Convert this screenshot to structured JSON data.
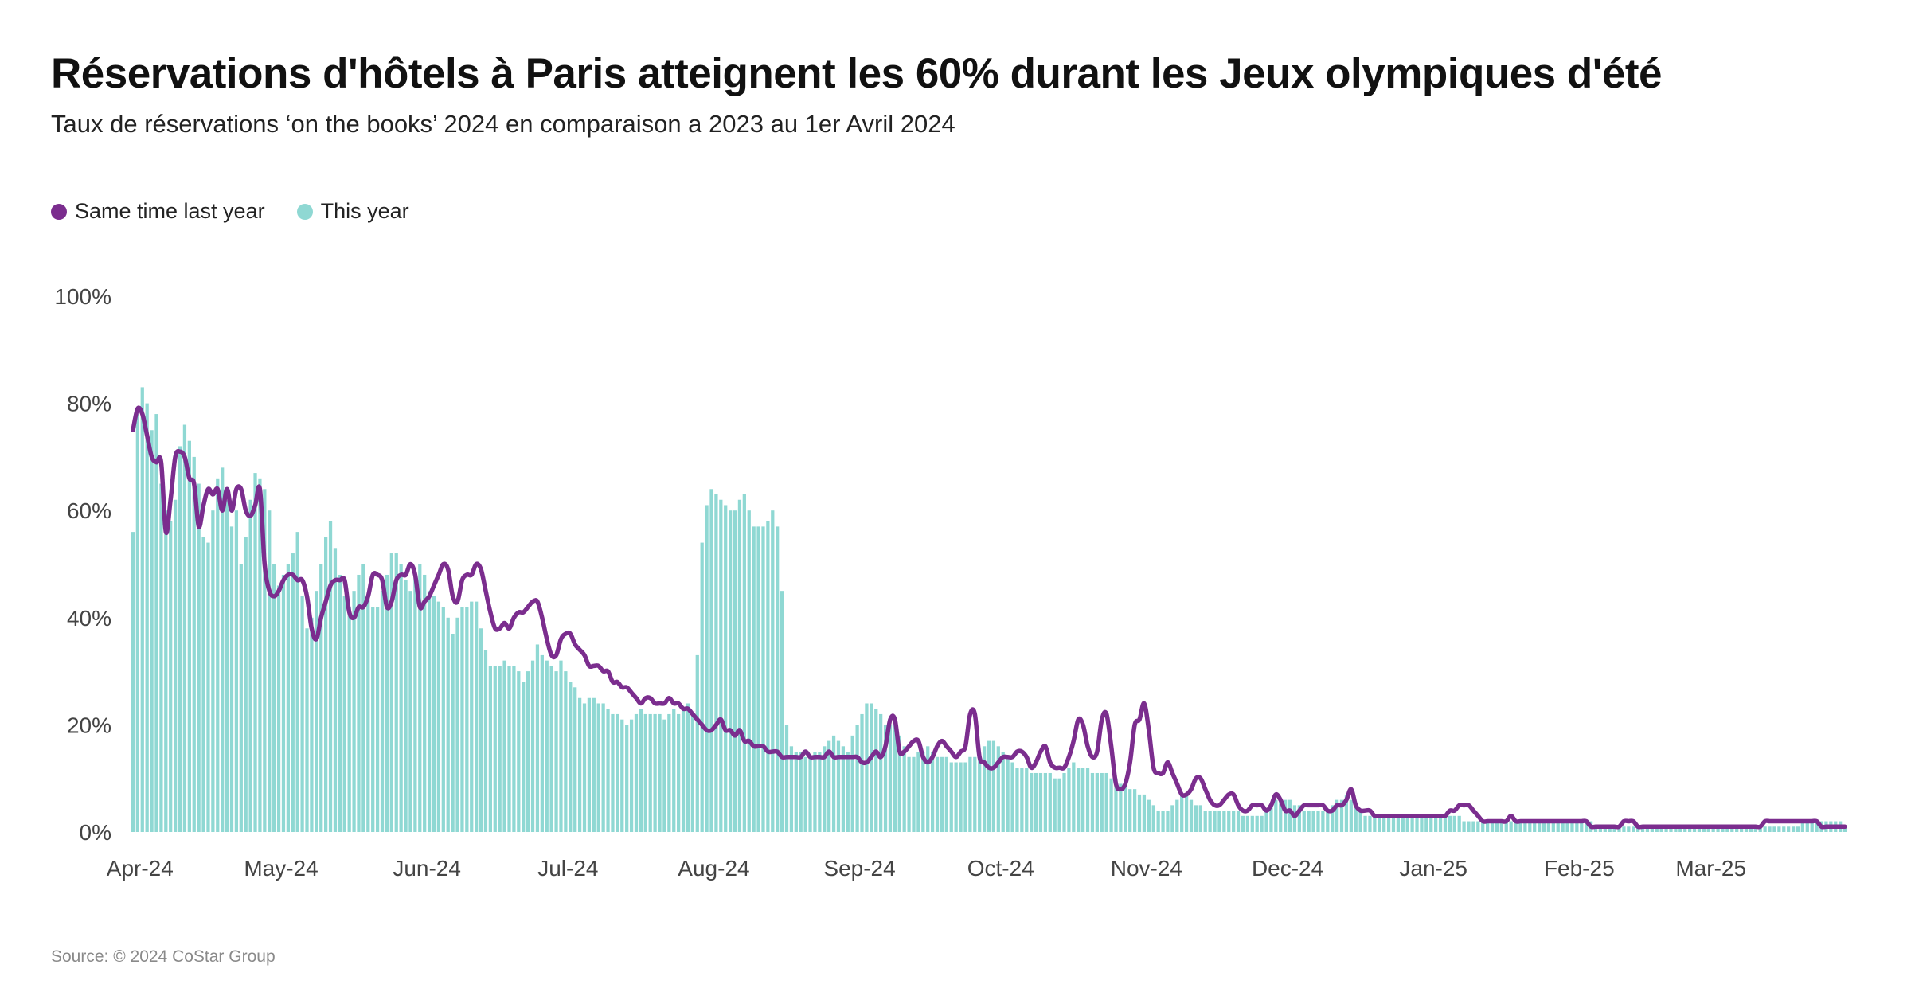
{
  "title": "Réservations d'hôtels à Paris atteignent les 60% durant les Jeux olympiques d'été",
  "subtitle": "Taux de réservations ‘on the books’ 2024 en comparaison a 2023 au 1er Avril 2024",
  "source": "Source: © 2024 CoStar Group",
  "legend": [
    {
      "label": "Same time last year",
      "color": "#7b2d8e"
    },
    {
      "label": "This year",
      "color": "#8fd8d3"
    }
  ],
  "chart_data": {
    "type": "bar",
    "x_ticks": [
      "Apr-24",
      "May-24",
      "Jun-24",
      "Jul-24",
      "Aug-24",
      "Sep-24",
      "Oct-24",
      "Nov-24",
      "Dec-24",
      "Jan-25",
      "Feb-25",
      "Mar-25"
    ],
    "y_ticks": [
      "0%",
      "20%",
      "40%",
      "60%",
      "80%",
      "100%"
    ],
    "ylim": [
      0,
      100
    ],
    "grid": false,
    "legend_position": "top-left",
    "series": [
      {
        "name": "This year",
        "type": "bar",
        "color": "#8fd8d3",
        "values_by_month": {
          "Apr-24": [
            56,
            78,
            83,
            80,
            75,
            78,
            65,
            60,
            58,
            62,
            72,
            76,
            73,
            70,
            65,
            55,
            54,
            60,
            66,
            68,
            62,
            57,
            60,
            50,
            55,
            62,
            67,
            66,
            64,
            60
          ],
          "May-24": [
            50,
            46,
            48,
            50,
            52,
            56,
            44,
            38,
            40,
            45,
            50,
            55,
            58,
            53,
            48,
            44,
            42,
            45,
            48,
            50,
            44,
            42,
            42,
            45,
            48,
            52,
            52,
            50,
            47,
            45,
            48
          ],
          "Jun-24": [
            50,
            48,
            45,
            44,
            43,
            42,
            40,
            37,
            40,
            42,
            42,
            43,
            43,
            38,
            34,
            31,
            31,
            31,
            32,
            31,
            31,
            30,
            28,
            30,
            32,
            35,
            33,
            32,
            31,
            30
          ],
          "Jul-24": [
            32,
            30,
            28,
            27,
            25,
            24,
            25,
            25,
            24,
            24,
            23,
            22,
            22,
            21,
            20,
            21,
            22,
            23,
            22,
            22,
            22,
            22,
            21,
            22,
            23,
            22,
            23,
            24,
            22,
            33,
            54
          ],
          "Aug-24": [
            61,
            64,
            63,
            62,
            61,
            60,
            60,
            62,
            63,
            60,
            57,
            57,
            57,
            58,
            60,
            57,
            45,
            20,
            16,
            15,
            15,
            14,
            14,
            15,
            15,
            16,
            17,
            18,
            17,
            16,
            15
          ],
          "Sep-24": [
            18,
            20,
            22,
            24,
            24,
            23,
            22,
            20,
            20,
            21,
            18,
            16,
            14,
            14,
            15,
            15,
            16,
            15,
            14,
            14,
            14,
            13,
            13,
            13,
            13,
            14,
            14,
            14,
            16,
            17
          ],
          "Oct-24": [
            17,
            16,
            15,
            14,
            13,
            12,
            12,
            12,
            11,
            11,
            11,
            11,
            11,
            10,
            10,
            11,
            12,
            13,
            12,
            12,
            12,
            11,
            11,
            11,
            11,
            10,
            10,
            9,
            9,
            8,
            8
          ],
          "Nov-24": [
            7,
            7,
            6,
            5,
            4,
            4,
            4,
            5,
            6,
            7,
            7,
            6,
            5,
            5,
            4,
            4,
            4,
            4,
            4,
            4,
            4,
            4,
            3,
            3,
            3,
            3,
            3,
            4,
            5,
            6
          ],
          "Dec-24": [
            6,
            6,
            6,
            5,
            5,
            4,
            4,
            4,
            4,
            4,
            4,
            5,
            6,
            6,
            7,
            6,
            5,
            4,
            3,
            3,
            3,
            3,
            3,
            3,
            3,
            3,
            3,
            3,
            3,
            3,
            3
          ],
          "Jan-25": [
            3,
            3,
            3,
            3,
            3,
            3,
            3,
            3,
            2,
            2,
            2,
            2,
            2,
            2,
            2,
            2,
            2,
            2,
            2,
            2,
            2,
            2,
            2,
            2,
            2,
            2,
            2,
            2,
            2,
            2,
            2
          ],
          "Feb-25": [
            2,
            2,
            2,
            2,
            2,
            1,
            1,
            1,
            1,
            1,
            1,
            1,
            1,
            1,
            1,
            1,
            1,
            1,
            1,
            1,
            1,
            1,
            1,
            1,
            1,
            1,
            1,
            1
          ],
          "Mar-25": [
            1,
            1,
            1,
            1,
            1,
            1,
            1,
            1,
            1,
            1,
            1,
            1,
            1,
            1,
            1,
            1,
            1,
            1,
            1,
            1,
            1,
            2,
            2,
            2,
            2,
            2,
            2,
            2,
            2,
            2,
            1
          ]
        }
      },
      {
        "name": "Same time last year",
        "type": "line",
        "color": "#7b2d8e",
        "values_by_month": {
          "Apr-24": [
            75,
            79,
            78,
            74,
            70,
            69,
            69,
            56,
            62,
            70,
            71,
            70,
            66,
            65,
            57,
            61,
            64,
            63,
            64,
            60,
            64,
            60,
            64,
            64,
            60,
            59,
            61,
            64,
            50,
            45
          ],
          "May-24": [
            44,
            45,
            47,
            48,
            48,
            47,
            47,
            44,
            38,
            36,
            40,
            43,
            46,
            47,
            47,
            47,
            41,
            40,
            42,
            42,
            44,
            48,
            48,
            47,
            42,
            43,
            47,
            48,
            48,
            50,
            48
          ],
          "Jun-24": [
            42,
            43,
            44,
            46,
            48,
            50,
            49,
            44,
            43,
            47,
            48,
            48,
            50,
            49,
            45,
            41,
            38,
            38,
            39,
            38,
            40,
            41,
            41,
            42,
            43,
            43,
            40,
            36,
            33,
            33
          ],
          "Jul-24": [
            36,
            37,
            37,
            35,
            34,
            33,
            31,
            31,
            31,
            30,
            30,
            28,
            28,
            27,
            27,
            26,
            25,
            24,
            25,
            25,
            24,
            24,
            24,
            25,
            24,
            24,
            23,
            23,
            22,
            21,
            20
          ],
          "Aug-24": [
            19,
            19,
            20,
            21,
            19,
            19,
            18,
            19,
            17,
            17,
            16,
            16,
            16,
            15,
            15,
            15,
            14,
            14,
            14,
            14,
            14,
            15,
            14,
            14,
            14,
            14,
            15,
            14,
            14,
            14,
            14
          ],
          "Sep-24": [
            14,
            14,
            13,
            13,
            14,
            15,
            14,
            16,
            21,
            21,
            15,
            15,
            16,
            17,
            17,
            14,
            13,
            14,
            16,
            17,
            16,
            15,
            14,
            15,
            16,
            22,
            22,
            14,
            13,
            12
          ],
          "Oct-24": [
            12,
            13,
            14,
            14,
            14,
            15,
            15,
            14,
            12,
            13,
            15,
            16,
            13,
            12,
            12,
            12,
            14,
            17,
            21,
            20,
            16,
            14,
            15,
            21,
            22,
            16,
            9,
            8,
            9,
            13,
            20
          ],
          "Nov-24": [
            21,
            24,
            19,
            12,
            11,
            11,
            13,
            11,
            9,
            7,
            7,
            8,
            10,
            10,
            8,
            6,
            5,
            5,
            6,
            7,
            7,
            5,
            4,
            4,
            5,
            5,
            5,
            4,
            5,
            7
          ],
          "Dec-24": [
            6,
            4,
            4,
            3,
            4,
            5,
            5,
            5,
            5,
            5,
            4,
            4,
            5,
            5,
            6,
            8,
            5,
            4,
            4,
            4,
            3,
            3,
            3,
            3,
            3,
            3,
            3,
            3,
            3,
            3,
            3
          ],
          "Jan-25": [
            3,
            3,
            3,
            3,
            3,
            4,
            4,
            5,
            5,
            5,
            4,
            3,
            2,
            2,
            2,
            2,
            2,
            2,
            3,
            2,
            2,
            2,
            2,
            2,
            2,
            2,
            2,
            2,
            2,
            2,
            2
          ],
          "Feb-25": [
            2,
            2,
            2,
            2,
            1,
            1,
            1,
            1,
            1,
            1,
            1,
            2,
            2,
            2,
            1,
            1,
            1,
            1,
            1,
            1,
            1,
            1,
            1,
            1,
            1,
            1,
            1,
            1
          ],
          "Mar-25": [
            1,
            1,
            1,
            1,
            1,
            1,
            1,
            1,
            1,
            1,
            1,
            1,
            1,
            2,
            2,
            2,
            2,
            2,
            2,
            2,
            2,
            2,
            2,
            2,
            2,
            1,
            1,
            1,
            1,
            1,
            1
          ]
        }
      }
    ]
  }
}
